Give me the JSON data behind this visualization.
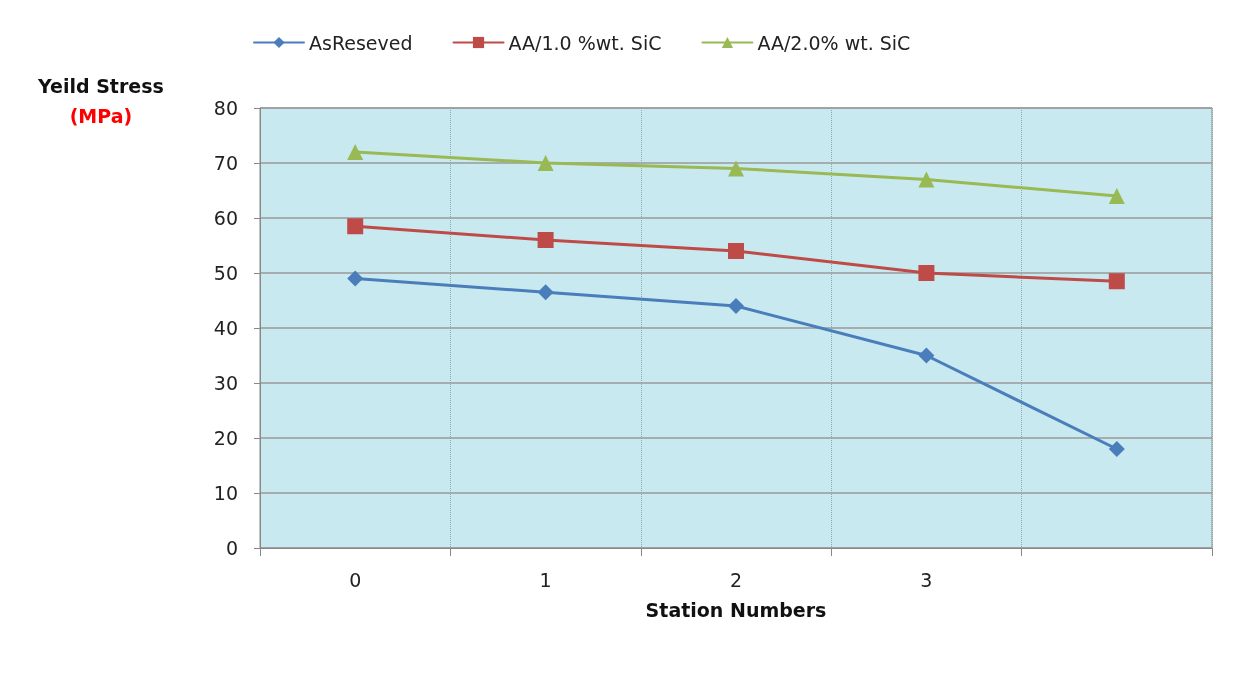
{
  "chart_data": {
    "type": "line",
    "xlabel": "Station Numbers",
    "ylabel": "Yeild Stress\n(MPa)",
    "categories": [
      "0",
      "1",
      "2",
      "3",
      null
    ],
    "ylim": [
      0,
      80
    ],
    "yticks": [
      0,
      10,
      20,
      30,
      40,
      50,
      60,
      70,
      80
    ],
    "grid": true,
    "legend": "top",
    "series": [
      {
        "name": "AsReseved",
        "color": "#4a7ebb",
        "marker": "diamond",
        "values": [
          49,
          46.5,
          44,
          35,
          18
        ]
      },
      {
        "name": "AA/1.0 %wt. SiC",
        "color": "#be4b48",
        "marker": "square",
        "values": [
          58.5,
          56,
          54,
          50,
          48.5
        ]
      },
      {
        "name": "AA/2.0% wt. SiC",
        "color": "#98b954",
        "marker": "triangle",
        "values": [
          72,
          70,
          69,
          67,
          64
        ]
      }
    ]
  }
}
